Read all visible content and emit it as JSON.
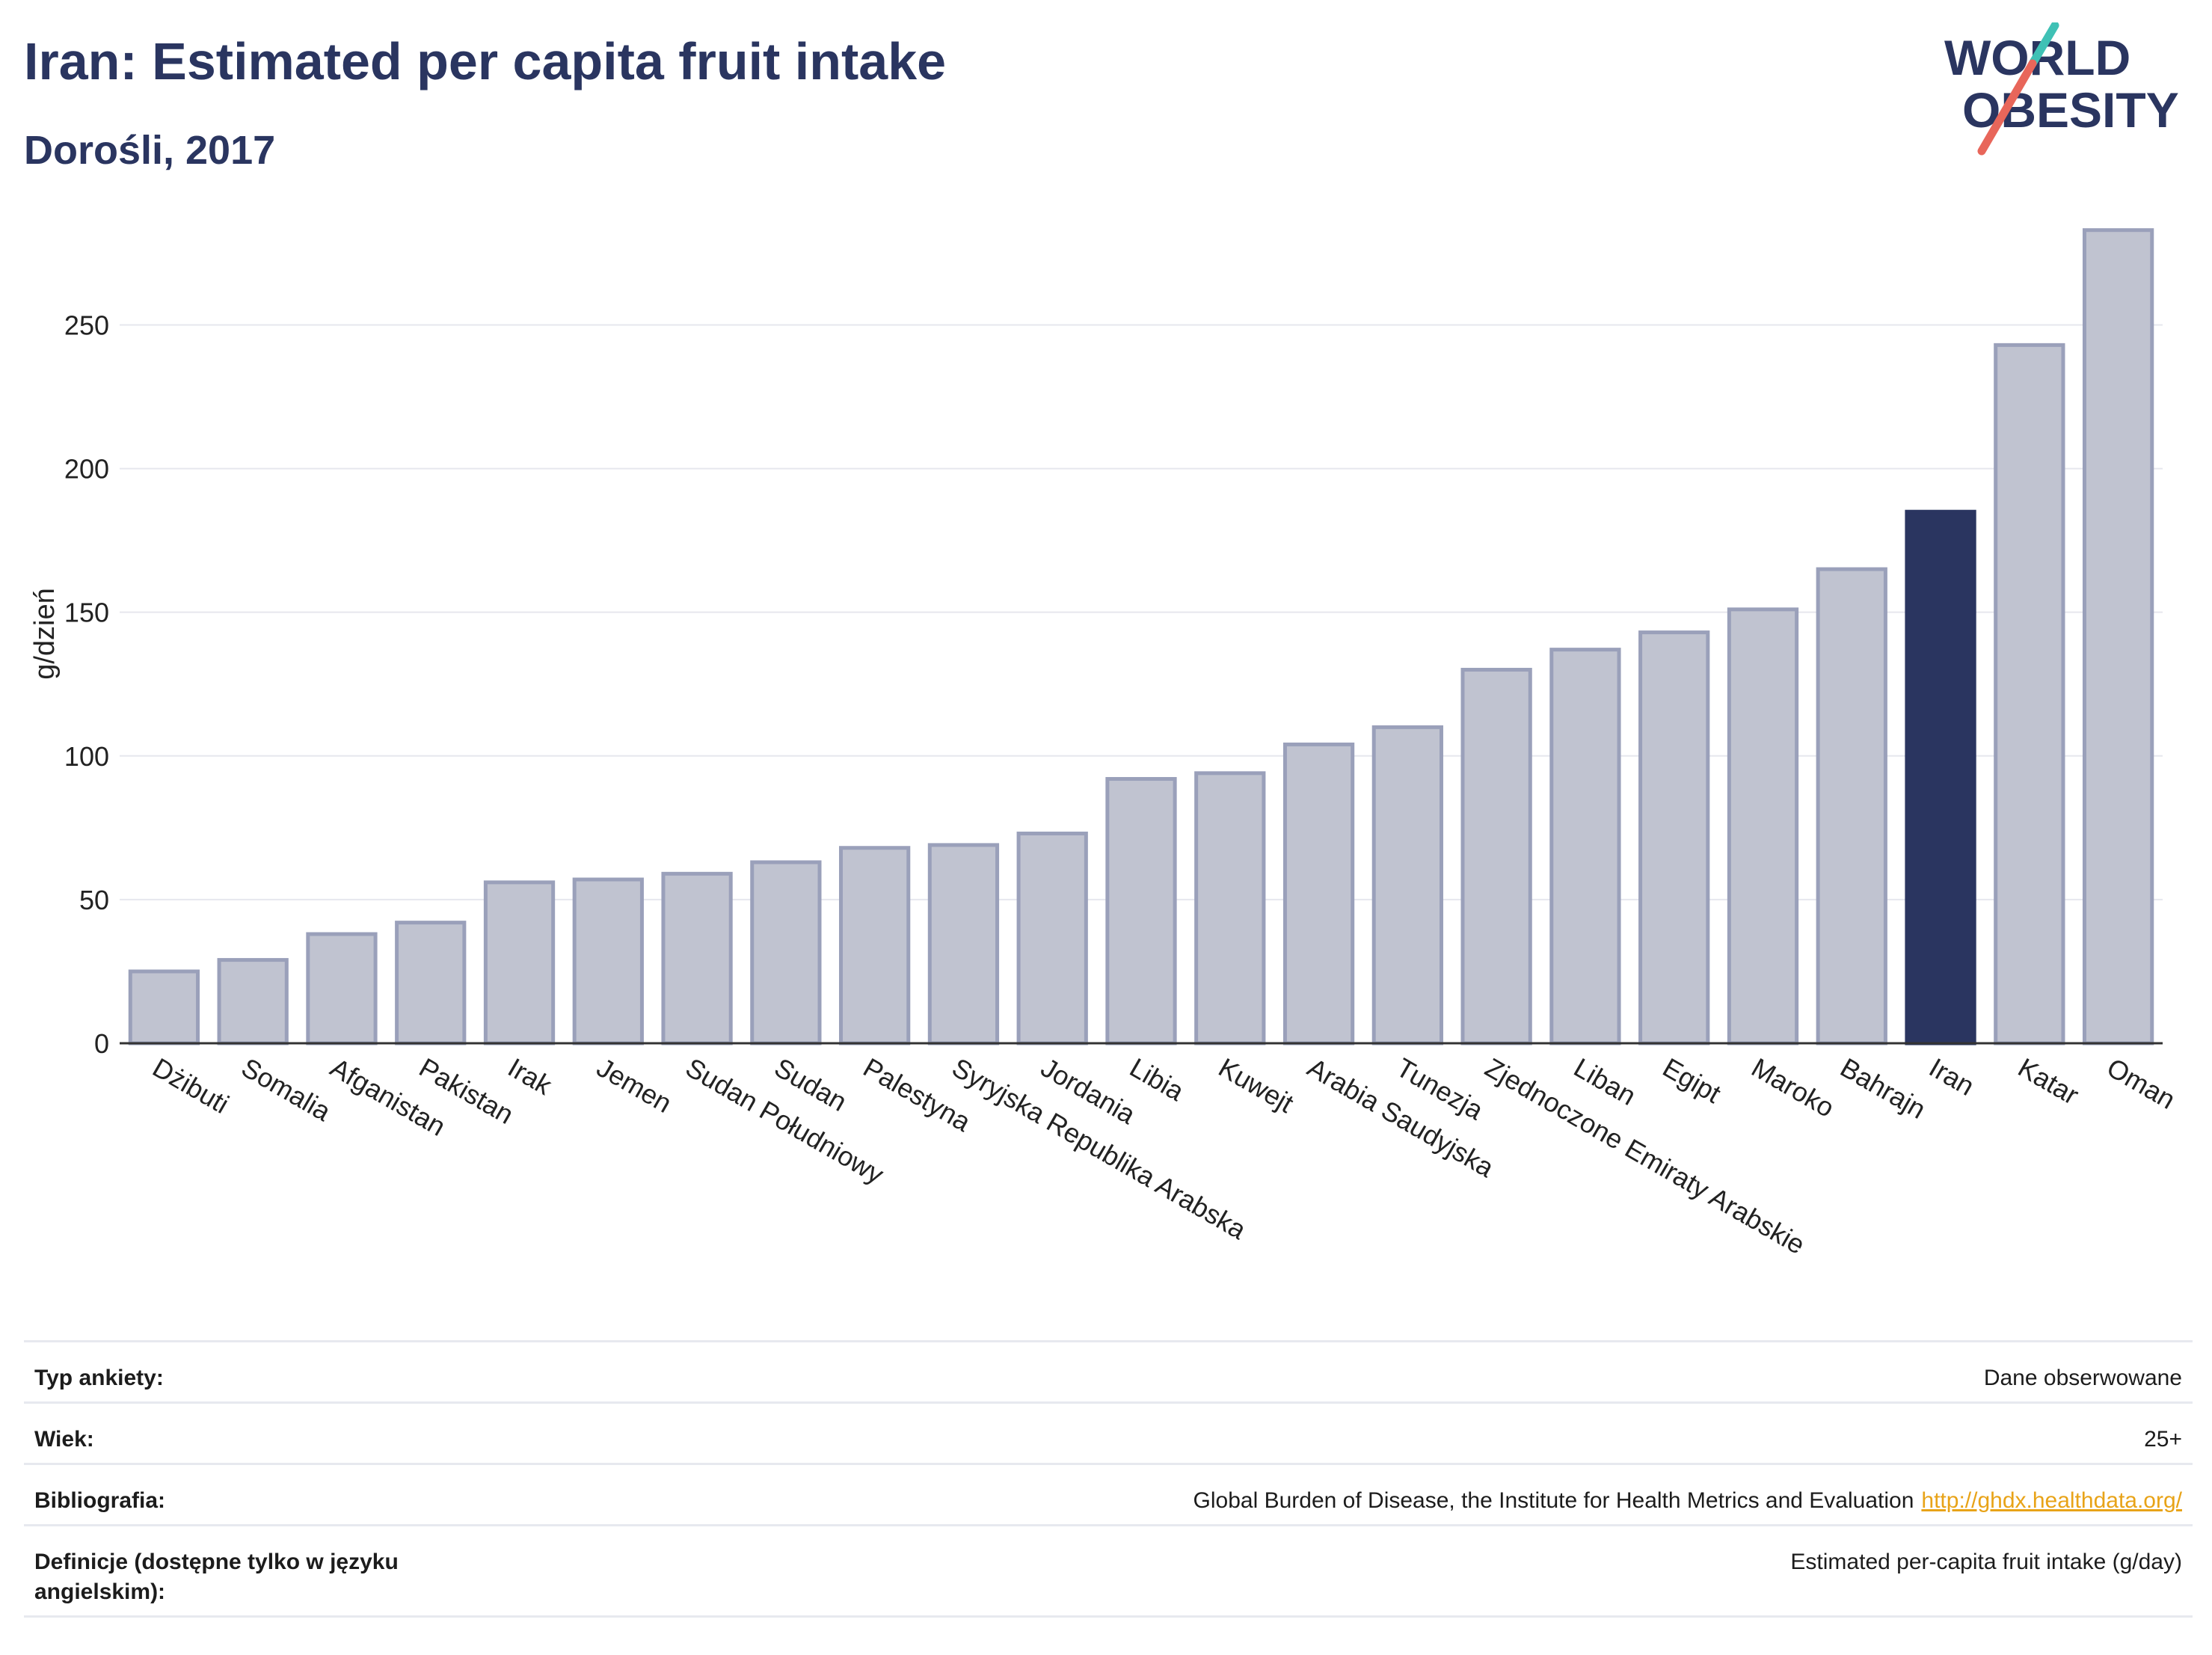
{
  "header": {
    "title": "Iran: Estimated per capita fruit intake",
    "subtitle": "Dorośli, 2017"
  },
  "logo": {
    "line1": "WORLD",
    "line2": "OBESITY",
    "colors": {
      "text": "#2a3560",
      "slash_red": "#e8665a",
      "slash_teal": "#3fc1b5"
    }
  },
  "chart_data": {
    "type": "bar",
    "ylabel": "g/dzień",
    "ylim": [
      0,
      285
    ],
    "yticks": [
      0,
      50,
      100,
      150,
      200,
      250
    ],
    "grid": true,
    "highlight": "Iran",
    "colors": {
      "bar": "#c0c3d0",
      "bar_border": "#9aa0ba",
      "highlight": "#2a3560"
    },
    "categories": [
      "Dżibuti",
      "Somalia",
      "Afganistan",
      "Pakistan",
      "Irak",
      "Jemen",
      "Sudan Południowy",
      "Sudan",
      "Palestyna",
      "Syryjska Republika Arabska",
      "Jordania",
      "Libia",
      "Kuwejt",
      "Arabia Saudyjska",
      "Tunezja",
      "Zjednoczone Emiraty Arabskie",
      "Liban",
      "Egipt",
      "Maroko",
      "Bahrajn",
      "Iran",
      "Katar",
      "Oman"
    ],
    "values": [
      25,
      29,
      38,
      42,
      56,
      57,
      59,
      63,
      68,
      69,
      73,
      92,
      94,
      104,
      110,
      130,
      137,
      143,
      151,
      165,
      185,
      243,
      283
    ]
  },
  "info": [
    {
      "label": "Typ ankiety:",
      "value": "Dane obserwowane"
    },
    {
      "label": "Wiek:",
      "value": "25+"
    },
    {
      "label": "Bibliografia:",
      "value": "Global Burden of Disease, the Institute for Health Metrics and Evaluation",
      "link": "http://ghdx.healthdata.org/"
    },
    {
      "label": "Definicje (dostępne tylko w języku angielskim):",
      "value": "Estimated per-capita fruit intake (g/day)"
    }
  ]
}
